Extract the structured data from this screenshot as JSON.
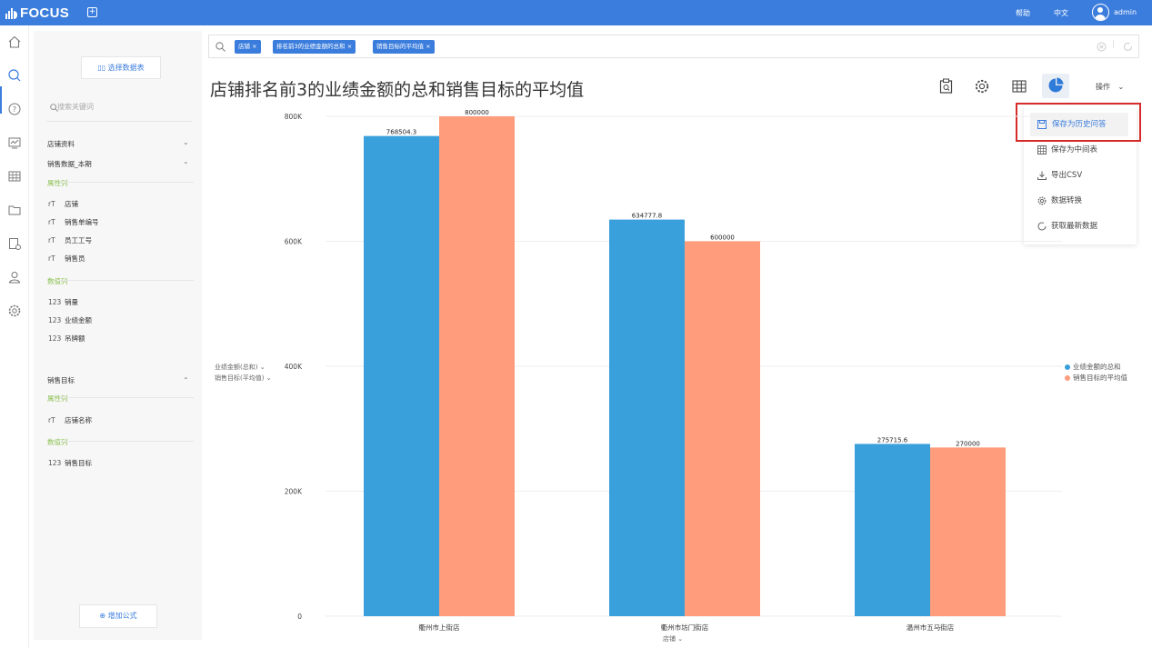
{
  "app": {
    "name": "FOCUS"
  },
  "topbar": {
    "help": "帮助",
    "lang": "中文",
    "user": "admin"
  },
  "panel": {
    "select_data_btn": "选择数据表",
    "search_placeholder": "搜索关键词",
    "store_info": "店铺资料",
    "sales_current": "销售数据_本期",
    "attr_col": "属性列",
    "num_col": "数值列",
    "fields1": [
      "店铺",
      "销售单编号",
      "员工工号",
      "销售员"
    ],
    "nums1": [
      "销量",
      "业绩金额",
      "吊牌额"
    ],
    "sales_target": "销售目标",
    "fields2": [
      "店铺名称"
    ],
    "nums2": [
      "销售目标"
    ],
    "attr_icon": "rT",
    "num_icon": "123",
    "add_formula": "增加公式"
  },
  "query": {
    "chips": [
      "店铺",
      "排名前3的业绩金额的总和",
      "销售目标的平均值"
    ]
  },
  "page_title": "店铺排名前3的业绩金额的总和销售目标的平均值",
  "toolbar": {
    "operation": "操作",
    "icons": [
      "report-icon",
      "settings-icon",
      "table-icon",
      "pie-chart-icon"
    ]
  },
  "menu": {
    "items": [
      "保存为历史问答",
      "保存为中间表",
      "导出CSV",
      "数据转换",
      "获取最新数据"
    ],
    "highlighted": 0
  },
  "chart_data": {
    "type": "bar",
    "categories": [
      "衢州市上街店",
      "衢州市坊门街店",
      "温州市五马街店"
    ],
    "series": [
      {
        "name": "业绩金额的总和",
        "values": [
          768504.3,
          634777.8,
          275715.6
        ],
        "labels": [
          "768504.3",
          "634777.8",
          "275715.6"
        ],
        "color": "#3aa0db"
      },
      {
        "name": "销售目标的平均值",
        "values": [
          800000,
          600000,
          270000
        ],
        "labels": [
          "800000",
          "600000",
          "270000"
        ],
        "color": "#fe9c7c"
      }
    ],
    "yticks": [
      "0",
      "200K",
      "400K",
      "600K",
      "800K"
    ],
    "ytick_values": [
      0,
      200000,
      400000,
      600000,
      800000
    ],
    "ylim": [
      0,
      800000
    ],
    "ylabel_lines": [
      "业绩金额(总和)",
      "销售目标(平均值)"
    ],
    "xlabel": "店铺",
    "legend": [
      "业绩金额的总和",
      "销售目标的平均值"
    ],
    "legend_position": "right",
    "grid": true
  }
}
